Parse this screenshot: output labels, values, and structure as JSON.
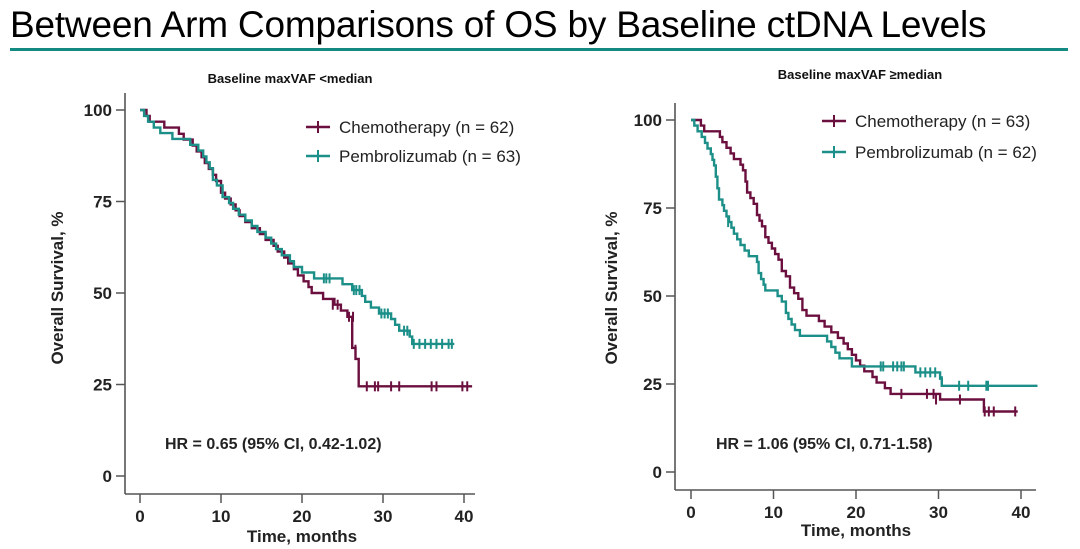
{
  "page": {
    "title": "Between Arm Comparisons of OS by Baseline ctDNA Levels",
    "accent_color": "#138a82"
  },
  "chart_data": [
    {
      "type": "line",
      "subtype": "kaplan-meier",
      "title": "Baseline maxVAF <median",
      "xlabel": "Time, months",
      "ylabel": "Overall Survival, %",
      "xlim": [
        0,
        41
      ],
      "ylim": [
        0,
        100
      ],
      "xticks": [
        0,
        10,
        20,
        30,
        40
      ],
      "yticks": [
        0,
        25,
        50,
        75,
        100
      ],
      "legend_position": "top-right",
      "annotation": "HR = 0.65 (95% CI, 0.42-1.02)",
      "series": [
        {
          "name": "Chemotherapy (n = 62)",
          "color": "#6b0f3f",
          "steps": [
            [
              0,
              100
            ],
            [
              0.8,
              98.4
            ],
            [
              1.2,
              96.8
            ],
            [
              3.0,
              95.2
            ],
            [
              4.8,
              93.5
            ],
            [
              5.4,
              91.9
            ],
            [
              6.5,
              90.3
            ],
            [
              7.0,
              88.7
            ],
            [
              7.6,
              87.1
            ],
            [
              8.0,
              85.5
            ],
            [
              8.5,
              83.9
            ],
            [
              9.0,
              82.3
            ],
            [
              9.4,
              80.6
            ],
            [
              10.0,
              77.4
            ],
            [
              10.5,
              75.8
            ],
            [
              11.2,
              74.2
            ],
            [
              11.8,
              72.6
            ],
            [
              12.3,
              71.0
            ],
            [
              13.0,
              69.4
            ],
            [
              13.8,
              67.7
            ],
            [
              14.8,
              66.1
            ],
            [
              15.5,
              64.5
            ],
            [
              16.5,
              62.9
            ],
            [
              17.0,
              61.3
            ],
            [
              17.8,
              59.7
            ],
            [
              18.3,
              58.1
            ],
            [
              19.0,
              56.5
            ],
            [
              19.5,
              54.8
            ],
            [
              20.2,
              53.2
            ],
            [
              20.8,
              51.6
            ],
            [
              21.2,
              50.0
            ],
            [
              22.6,
              48.4
            ],
            [
              24.0,
              46.8
            ],
            [
              24.8,
              45.2
            ],
            [
              25.6,
              43.5
            ],
            [
              26.2,
              35.0
            ],
            [
              26.6,
              32.0
            ],
            [
              27.0,
              24.5
            ],
            [
              41.0,
              24.5
            ]
          ],
          "censored": [
            [
              23.8,
              46.8
            ],
            [
              24.4,
              46.8
            ],
            [
              25.8,
              43.5
            ],
            [
              26.3,
              43.5
            ],
            [
              26.6,
              34.5
            ],
            [
              28.0,
              24.5
            ],
            [
              29.0,
              24.5
            ],
            [
              29.4,
              24.5
            ],
            [
              31.0,
              24.5
            ],
            [
              32.0,
              24.5
            ],
            [
              36.0,
              24.5
            ],
            [
              36.6,
              24.5
            ],
            [
              39.8,
              24.5
            ],
            [
              40.4,
              24.5
            ]
          ]
        },
        {
          "name": "Pembrolizumab (n = 63)",
          "color": "#1b8f88",
          "steps": [
            [
              0,
              100
            ],
            [
              0.5,
              98.4
            ],
            [
              1.0,
              96.8
            ],
            [
              1.7,
              95.2
            ],
            [
              2.5,
              93.7
            ],
            [
              4.0,
              92.1
            ],
            [
              6.2,
              90.5
            ],
            [
              7.2,
              88.9
            ],
            [
              7.8,
              87.3
            ],
            [
              8.2,
              85.7
            ],
            [
              8.6,
              84.1
            ],
            [
              9.0,
              80.9
            ],
            [
              9.5,
              79.4
            ],
            [
              10.2,
              76.2
            ],
            [
              11.0,
              74.6
            ],
            [
              11.5,
              73.0
            ],
            [
              12.2,
              71.4
            ],
            [
              13.0,
              69.8
            ],
            [
              13.8,
              68.3
            ],
            [
              14.5,
              66.7
            ],
            [
              15.5,
              65.1
            ],
            [
              16.2,
              63.5
            ],
            [
              16.8,
              62.0
            ],
            [
              17.5,
              60.3
            ],
            [
              18.5,
              58.7
            ],
            [
              19.0,
              57.1
            ],
            [
              20.0,
              55.6
            ],
            [
              21.5,
              54.0
            ],
            [
              25.0,
              52.4
            ],
            [
              26.2,
              50.8
            ],
            [
              27.4,
              49.2
            ],
            [
              27.8,
              47.6
            ],
            [
              28.5,
              46.0
            ],
            [
              29.5,
              44.4
            ],
            [
              31.0,
              42.9
            ],
            [
              31.5,
              41.3
            ],
            [
              32.0,
              39.7
            ],
            [
              33.3,
              38.1
            ],
            [
              33.6,
              36.1
            ],
            [
              38.8,
              36.1
            ]
          ],
          "censored": [
            [
              22.7,
              54.0
            ],
            [
              23.0,
              54.0
            ],
            [
              23.4,
              54.0
            ],
            [
              26.4,
              50.8
            ],
            [
              26.7,
              50.8
            ],
            [
              27.1,
              50.8
            ],
            [
              29.8,
              44.4
            ],
            [
              30.2,
              44.4
            ],
            [
              30.6,
              44.4
            ],
            [
              32.6,
              39.7
            ],
            [
              33.0,
              39.7
            ],
            [
              33.8,
              36.1
            ],
            [
              34.5,
              36.1
            ],
            [
              35.2,
              36.1
            ],
            [
              35.9,
              36.1
            ],
            [
              36.6,
              36.1
            ],
            [
              37.3,
              36.1
            ],
            [
              38.1,
              36.1
            ],
            [
              38.5,
              36.1
            ]
          ]
        }
      ]
    },
    {
      "type": "line",
      "subtype": "kaplan-meier",
      "title": "Baseline maxVAF ≥median",
      "xlabel": "Time, months",
      "ylabel": "Overall Survival, %",
      "xlim": [
        0,
        42
      ],
      "ylim": [
        0,
        100
      ],
      "xticks": [
        0,
        10,
        20,
        30,
        40
      ],
      "yticks": [
        0,
        25,
        50,
        75,
        100
      ],
      "legend_position": "top-right",
      "annotation": "HR = 1.06 (95% CI, 0.71-1.58)",
      "series": [
        {
          "name": "Chemotherapy (n = 63)",
          "color": "#6b0f3f",
          "steps": [
            [
              0,
              100
            ],
            [
              1.2,
              98.4
            ],
            [
              1.6,
              96.8
            ],
            [
              3.5,
              95.2
            ],
            [
              3.8,
              93.7
            ],
            [
              4.3,
              92.1
            ],
            [
              4.8,
              90.5
            ],
            [
              5.2,
              88.9
            ],
            [
              6.0,
              87.3
            ],
            [
              6.3,
              85.7
            ],
            [
              6.6,
              82.5
            ],
            [
              6.8,
              79.4
            ],
            [
              7.2,
              77.8
            ],
            [
              7.6,
              76.2
            ],
            [
              8.0,
              73.0
            ],
            [
              8.3,
              71.4
            ],
            [
              8.6,
              69.8
            ],
            [
              9.0,
              66.7
            ],
            [
              9.4,
              65.1
            ],
            [
              9.8,
              63.5
            ],
            [
              10.2,
              61.9
            ],
            [
              10.6,
              60.3
            ],
            [
              11.0,
              57.1
            ],
            [
              11.5,
              55.6
            ],
            [
              12.0,
              52.4
            ],
            [
              12.5,
              50.8
            ],
            [
              13.0,
              49.2
            ],
            [
              13.5,
              46.0
            ],
            [
              14.0,
              44.4
            ],
            [
              15.5,
              42.9
            ],
            [
              16.2,
              41.3
            ],
            [
              17.0,
              39.7
            ],
            [
              17.8,
              38.1
            ],
            [
              18.5,
              36.5
            ],
            [
              19.0,
              34.9
            ],
            [
              19.5,
              33.3
            ],
            [
              20.0,
              31.7
            ],
            [
              20.5,
              30.2
            ],
            [
              21.0,
              28.6
            ],
            [
              22.0,
              27.0
            ],
            [
              22.5,
              25.4
            ],
            [
              23.5,
              23.8
            ],
            [
              24.2,
              22.2
            ],
            [
              29.6,
              22.2
            ],
            [
              30.2,
              20.6
            ],
            [
              35.2,
              20.6
            ],
            [
              35.5,
              17.2
            ],
            [
              39.6,
              17.2
            ]
          ],
          "censored": [
            [
              25.5,
              22.2
            ],
            [
              28.6,
              22.2
            ],
            [
              29.4,
              22.2
            ],
            [
              29.7,
              20.6
            ],
            [
              32.6,
              20.6
            ],
            [
              35.6,
              17.2
            ],
            [
              36.1,
              17.2
            ],
            [
              36.7,
              17.2
            ],
            [
              39.3,
              17.2
            ]
          ]
        },
        {
          "name": "Pembrolizumab (n = 62)",
          "color": "#1b8f88",
          "steps": [
            [
              0,
              100
            ],
            [
              0.4,
              98.4
            ],
            [
              0.8,
              96.8
            ],
            [
              1.3,
              95.2
            ],
            [
              1.7,
              93.5
            ],
            [
              2.0,
              91.9
            ],
            [
              2.4,
              90.3
            ],
            [
              2.6,
              88.7
            ],
            [
              2.8,
              87.1
            ],
            [
              3.0,
              83.9
            ],
            [
              3.2,
              80.6
            ],
            [
              3.4,
              77.4
            ],
            [
              3.8,
              75.8
            ],
            [
              4.0,
              74.2
            ],
            [
              4.3,
              72.6
            ],
            [
              4.6,
              71.0
            ],
            [
              4.9,
              69.4
            ],
            [
              5.2,
              67.7
            ],
            [
              5.6,
              66.1
            ],
            [
              6.0,
              64.5
            ],
            [
              6.5,
              62.9
            ],
            [
              7.0,
              61.3
            ],
            [
              8.0,
              59.7
            ],
            [
              8.2,
              56.5
            ],
            [
              8.5,
              54.8
            ],
            [
              8.8,
              53.2
            ],
            [
              9.0,
              51.6
            ],
            [
              10.5,
              50.0
            ],
            [
              11.0,
              48.4
            ],
            [
              11.5,
              45.2
            ],
            [
              11.8,
              43.5
            ],
            [
              12.2,
              41.9
            ],
            [
              12.6,
              40.3
            ],
            [
              13.2,
              38.7
            ],
            [
              16.5,
              37.1
            ],
            [
              17.0,
              35.5
            ],
            [
              17.5,
              33.9
            ],
            [
              18.0,
              32.3
            ],
            [
              19.5,
              30.0
            ],
            [
              26.5,
              30.0
            ],
            [
              27.2,
              28.3
            ],
            [
              30.0,
              28.3
            ],
            [
              30.2,
              26.5
            ],
            [
              30.4,
              24.5
            ],
            [
              42.0,
              24.5
            ]
          ],
          "censored": [
            [
              4.5,
              71.0
            ],
            [
              23.0,
              30.0
            ],
            [
              23.3,
              30.0
            ],
            [
              24.5,
              30.0
            ],
            [
              25.0,
              30.0
            ],
            [
              25.5,
              30.0
            ],
            [
              25.8,
              30.0
            ],
            [
              27.8,
              28.3
            ],
            [
              28.4,
              28.3
            ],
            [
              29.0,
              28.3
            ],
            [
              29.6,
              28.3
            ],
            [
              30.4,
              25.8
            ],
            [
              32.5,
              24.5
            ],
            [
              33.6,
              24.5
            ],
            [
              35.8,
              24.5
            ],
            [
              36.0,
              24.5
            ]
          ]
        }
      ]
    }
  ]
}
